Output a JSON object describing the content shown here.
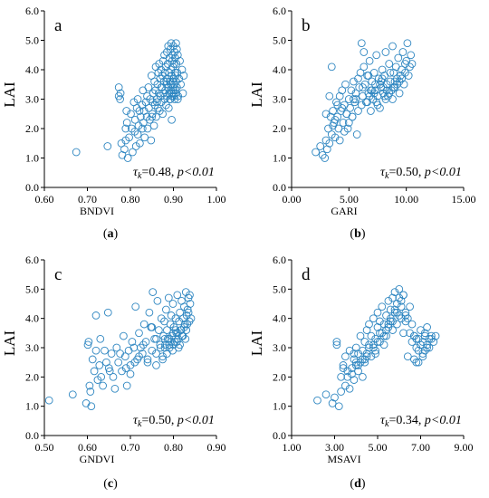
{
  "chart_data": [
    {
      "type": "scatter",
      "panel_label": "a",
      "caption_label": "a",
      "xlabel": "BNDVI",
      "ylabel": "LAI",
      "xlim": [
        0.6,
        1.0
      ],
      "ylim": [
        0.0,
        6.0
      ],
      "x_ticks": [
        "0.60",
        "0.70",
        "0.80",
        "0.90",
        "1.00"
      ],
      "y_ticks": [
        "0.0",
        "1.0",
        "2.0",
        "3.0",
        "4.0",
        "5.0",
        "6.0"
      ],
      "annotation": {
        "symbol": "τ",
        "subscript": "k",
        "value": "=0.48, ",
        "p": "p<0.01"
      },
      "x": [
        0.674,
        0.747,
        0.773,
        0.777,
        0.779,
        0.781,
        0.786,
        0.789,
        0.789,
        0.791,
        0.792,
        0.794,
        0.797,
        0.801,
        0.803,
        0.805,
        0.808,
        0.81,
        0.811,
        0.813,
        0.815,
        0.817,
        0.817,
        0.819,
        0.821,
        0.822,
        0.824,
        0.827,
        0.828,
        0.829,
        0.83,
        0.832,
        0.833,
        0.836,
        0.838,
        0.839,
        0.84,
        0.842,
        0.843,
        0.845,
        0.846,
        0.848,
        0.849,
        0.851,
        0.852,
        0.853,
        0.855,
        0.856,
        0.857,
        0.858,
        0.859,
        0.86,
        0.862,
        0.863,
        0.864,
        0.865,
        0.866,
        0.867,
        0.868,
        0.869,
        0.87,
        0.871,
        0.872,
        0.873,
        0.874,
        0.875,
        0.876,
        0.877,
        0.878,
        0.879,
        0.88,
        0.88,
        0.881,
        0.882,
        0.883,
        0.884,
        0.885,
        0.885,
        0.886,
        0.887,
        0.888,
        0.888,
        0.889,
        0.89,
        0.89,
        0.891,
        0.892,
        0.892,
        0.893,
        0.894,
        0.894,
        0.895,
        0.895,
        0.896,
        0.896,
        0.897,
        0.897,
        0.898,
        0.898,
        0.899,
        0.899,
        0.9,
        0.9,
        0.901,
        0.901,
        0.902,
        0.902,
        0.903,
        0.903,
        0.904,
        0.904,
        0.905,
        0.905,
        0.906,
        0.906,
        0.907,
        0.908,
        0.909,
        0.91,
        0.911,
        0.913,
        0.915,
        0.917,
        0.92,
        0.922,
        0.924,
        0.773,
        0.776,
        0.85,
        0.862,
        0.905,
        0.91,
        0.908,
        0.896,
        0.884,
        0.872,
        0.901,
        0.893
      ],
      "y": [
        1.2,
        1.4,
        3.1,
        3.2,
        1.5,
        1.1,
        1.3,
        2.0,
        1.6,
        2.6,
        2.2,
        1.0,
        1.7,
        2.5,
        2.0,
        1.2,
        2.9,
        1.9,
        2.3,
        1.4,
        2.7,
        3.0,
        1.8,
        2.1,
        2.6,
        1.5,
        2.4,
        2.8,
        2.0,
        3.3,
        2.2,
        2.6,
        1.7,
        2.9,
        2.4,
        3.1,
        2.0,
        3.4,
        2.7,
        2.3,
        3.0,
        1.6,
        3.8,
        2.5,
        2.9,
        3.2,
        2.1,
        3.6,
        2.8,
        3.3,
        4.1,
        2.4,
        3.0,
        3.5,
        2.7,
        3.9,
        3.2,
        4.2,
        2.6,
        3.7,
        3.1,
        4.0,
        2.9,
        3.4,
        3.8,
        2.5,
        4.3,
        3.2,
        3.6,
        4.5,
        3.0,
        3.9,
        3.3,
        4.1,
        2.8,
        3.5,
        4.6,
        3.1,
        3.7,
        4.2,
        3.4,
        4.8,
        2.7,
        3.9,
        3.2,
        4.4,
        3.6,
        3.0,
        4.7,
        3.3,
        4.0,
        3.5,
        4.9,
        3.2,
        3.8,
        4.3,
        3.1,
        3.6,
        4.5,
        3.4,
        4.1,
        3.3,
        4.8,
        3.7,
        3.2,
        4.2,
        3.5,
        4.6,
        3.0,
        3.9,
        4.4,
        3.3,
        3.8,
        4.9,
        3.6,
        4.2,
        3.4,
        3.9,
        4.5,
        3.1,
        3.7,
        4.3,
        3.5,
        4.0,
        3.2,
        3.8,
        3.4,
        3.0,
        2.4,
        2.9,
        3.2,
        3.0,
        4.7,
        2.3,
        3.6,
        3.4,
        3.1,
        3.0
      ]
    },
    {
      "type": "scatter",
      "panel_label": "b",
      "caption_label": "b",
      "xlabel": "GARI",
      "ylabel": "LAI",
      "xlim": [
        0.0,
        15.0
      ],
      "ylim": [
        0.0,
        6.0
      ],
      "x_ticks": [
        "0.00",
        "5.00",
        "10.00",
        "15.00"
      ],
      "y_ticks": [
        "0.0",
        "1.0",
        "2.0",
        "3.0",
        "4.0",
        "5.0",
        "6.0"
      ],
      "annotation": {
        "symbol": "τ",
        "subscript": "k",
        "value": "=0.50, ",
        "p": "p<0.01"
      },
      "x": [
        2.1,
        2.5,
        2.7,
        2.9,
        3.0,
        3.1,
        3.2,
        3.3,
        3.4,
        3.5,
        3.6,
        3.7,
        3.8,
        3.9,
        4.0,
        4.1,
        4.2,
        4.3,
        4.4,
        4.5,
        4.6,
        4.7,
        4.8,
        4.9,
        5.0,
        5.1,
        5.2,
        5.3,
        5.4,
        5.5,
        5.6,
        5.7,
        5.8,
        5.9,
        6.0,
        6.1,
        6.2,
        6.3,
        6.4,
        6.5,
        6.6,
        6.7,
        6.8,
        6.9,
        7.0,
        7.1,
        7.2,
        7.3,
        7.4,
        7.5,
        7.6,
        7.7,
        7.8,
        7.9,
        8.0,
        8.1,
        8.2,
        8.3,
        8.4,
        8.5,
        8.6,
        8.7,
        8.8,
        8.9,
        9.0,
        9.1,
        9.2,
        9.3,
        9.4,
        9.5,
        9.6,
        9.7,
        9.8,
        9.9,
        10.0,
        10.1,
        10.2,
        10.3,
        10.4,
        10.5,
        3.3,
        3.5,
        6.1,
        6.3,
        7.0,
        7.8,
        8.5,
        9.2,
        3.8,
        4.4,
        5.0,
        5.6,
        6.8,
        7.5,
        8.0,
        8.8,
        9.6,
        4.6,
        5.3,
        6.6,
        7.2,
        7.7,
        8.2,
        8.7,
        9.0,
        9.9,
        4.2,
        5.8,
        6.9,
        7.4,
        8.1,
        8.9,
        3.0,
        3.6,
        4.0,
        4.8,
        5.4,
        6.2,
        6.7,
        7.3,
        7.9,
        8.3,
        8.6,
        9.4
      ],
      "y": [
        1.2,
        1.4,
        1.1,
        1.0,
        1.6,
        1.3,
        2.0,
        1.5,
        2.4,
        1.8,
        2.6,
        2.2,
        1.7,
        2.9,
        2.4,
        2.0,
        3.1,
        2.6,
        3.3,
        2.2,
        2.8,
        3.5,
        2.5,
        2.0,
        3.0,
        2.7,
        3.3,
        2.4,
        3.6,
        2.9,
        3.2,
        1.8,
        2.6,
        3.4,
        3.9,
        2.8,
        3.1,
        4.1,
        3.5,
        2.9,
        3.8,
        3.2,
        4.3,
        2.6,
        3.6,
        3.0,
        3.9,
        3.3,
        4.5,
        3.1,
        3.7,
        2.7,
        3.4,
        4.0,
        3.2,
        3.8,
        4.6,
        3.5,
        3.1,
        4.2,
        3.6,
        3.3,
        4.8,
        3.9,
        3.4,
        4.1,
        3.7,
        4.4,
        3.2,
        3.8,
        4.0,
        4.6,
        3.5,
        3.9,
        4.3,
        4.9,
        3.8,
        4.1,
        4.5,
        4.2,
        3.1,
        4.1,
        4.9,
        4.6,
        3.3,
        3.6,
        3.2,
        3.5,
        2.3,
        2.7,
        2.2,
        3.0,
        3.1,
        2.8,
        3.4,
        3.0,
        3.7,
        1.9,
        2.4,
        2.9,
        3.2,
        3.5,
        3.0,
        3.3,
        3.6,
        4.2,
        1.6,
        3.7,
        3.3,
        2.9,
        3.1,
        3.4,
        2.5,
        2.1,
        2.8,
        2.5,
        3.0,
        3.4,
        3.8,
        3.5,
        3.7,
        3.3,
        3.9,
        3.6
      ]
    },
    {
      "type": "scatter",
      "panel_label": "c",
      "caption_label": "c",
      "xlabel": "GNDVI",
      "ylabel": "LAI",
      "xlim": [
        0.5,
        0.9
      ],
      "ylim": [
        0.0,
        6.0
      ],
      "x_ticks": [
        "0.50",
        "0.60",
        "0.70",
        "0.80",
        "0.90"
      ],
      "y_ticks": [
        "0.0",
        "1.0",
        "2.0",
        "3.0",
        "4.0",
        "5.0",
        "6.0"
      ],
      "annotation": {
        "symbol": "τ",
        "subscript": "k",
        "value": "=0.50, ",
        "p": "p<0.01"
      },
      "x": [
        0.511,
        0.566,
        0.597,
        0.601,
        0.603,
        0.605,
        0.607,
        0.609,
        0.612,
        0.616,
        0.62,
        0.624,
        0.628,
        0.632,
        0.636,
        0.64,
        0.644,
        0.648,
        0.652,
        0.656,
        0.66,
        0.664,
        0.668,
        0.672,
        0.676,
        0.68,
        0.684,
        0.688,
        0.692,
        0.696,
        0.7,
        0.704,
        0.708,
        0.712,
        0.716,
        0.72,
        0.724,
        0.728,
        0.732,
        0.736,
        0.74,
        0.744,
        0.748,
        0.752,
        0.756,
        0.76,
        0.763,
        0.766,
        0.769,
        0.772,
        0.775,
        0.777,
        0.779,
        0.781,
        0.783,
        0.785,
        0.787,
        0.789,
        0.791,
        0.793,
        0.795,
        0.797,
        0.799,
        0.801,
        0.803,
        0.805,
        0.807,
        0.809,
        0.811,
        0.813,
        0.815,
        0.817,
        0.819,
        0.821,
        0.823,
        0.825,
        0.827,
        0.829,
        0.831,
        0.833,
        0.835,
        0.837,
        0.839,
        0.841,
        0.62,
        0.63,
        0.65,
        0.7,
        0.72,
        0.75,
        0.76,
        0.78,
        0.79,
        0.8,
        0.81,
        0.82,
        0.83,
        0.74,
        0.77,
        0.785,
        0.795,
        0.805,
        0.815,
        0.825,
        0.835,
        0.76,
        0.775,
        0.79,
        0.8,
        0.812,
        0.822,
        0.832,
        0.69,
        0.71,
        0.73,
        0.75,
        0.78,
        0.798,
        0.808,
        0.818,
        0.828,
        0.838
      ],
      "y": [
        1.2,
        1.4,
        1.1,
        3.1,
        3.2,
        1.7,
        1.5,
        1.0,
        2.6,
        2.2,
        4.1,
        1.9,
        2.4,
        2.0,
        1.7,
        2.9,
        2.5,
        4.2,
        2.2,
        2.8,
        2.0,
        1.6,
        3.0,
        2.5,
        2.8,
        2.2,
        3.4,
        2.7,
        1.7,
        2.9,
        2.4,
        3.2,
        3.0,
        4.4,
        2.6,
        3.5,
        3.0,
        2.8,
        3.8,
        3.2,
        2.5,
        4.2,
        3.7,
        4.9,
        3.3,
        2.8,
        4.6,
        3.6,
        3.1,
        4.0,
        2.6,
        3.4,
        3.9,
        3.1,
        4.3,
        3.6,
        3.3,
        4.7,
        3.0,
        3.8,
        4.1,
        3.4,
        4.5,
        3.7,
        3.2,
        4.0,
        3.5,
        4.8,
        3.3,
        3.9,
        4.2,
        3.6,
        4.6,
        3.4,
        4.0,
        4.4,
        3.8,
        4.9,
        4.1,
        4.3,
        4.7,
        3.9,
        4.5,
        4.0,
        2.9,
        3.3,
        2.3,
        2.1,
        2.7,
        2.9,
        3.3,
        3.0,
        3.3,
        3.1,
        3.5,
        3.4,
        3.6,
        2.6,
        3.0,
        2.8,
        3.2,
        3.6,
        3.1,
        3.7,
        4.2,
        2.4,
        2.7,
        3.1,
        3.5,
        3.0,
        3.4,
        3.8,
        2.3,
        2.5,
        3.1,
        3.7,
        3.3,
        2.9,
        3.2,
        3.6,
        3.3,
        4.8
      ]
    },
    {
      "type": "scatter",
      "panel_label": "d",
      "caption_label": "d",
      "xlabel": "MSAVI",
      "ylabel": "LAI",
      "xlim": [
        1.0,
        9.0
      ],
      "ylim": [
        0.0,
        6.0
      ],
      "x_ticks": [
        "1.00",
        "3.00",
        "5.00",
        "7.00",
        "9.00"
      ],
      "y_ticks": [
        "0.0",
        "1.0",
        "2.0",
        "3.0",
        "4.0",
        "5.0",
        "6.0"
      ],
      "annotation": {
        "symbol": "τ",
        "subscript": "k",
        "value": "=0.34, ",
        "p": "p<0.01"
      },
      "x": [
        2.2,
        2.6,
        2.9,
        3.0,
        3.1,
        3.1,
        3.2,
        3.3,
        3.3,
        3.4,
        3.5,
        3.5,
        3.6,
        3.7,
        3.7,
        3.8,
        3.9,
        3.9,
        4.0,
        4.0,
        4.1,
        4.1,
        4.2,
        4.2,
        4.3,
        4.3,
        4.4,
        4.4,
        4.5,
        4.5,
        4.6,
        4.6,
        4.7,
        4.7,
        4.8,
        4.8,
        4.9,
        4.9,
        5.0,
        5.0,
        5.1,
        5.1,
        5.2,
        5.2,
        5.3,
        5.3,
        5.4,
        5.4,
        5.5,
        5.5,
        5.6,
        5.6,
        5.7,
        5.7,
        5.8,
        5.8,
        5.9,
        5.9,
        6.0,
        6.0,
        6.1,
        6.1,
        6.2,
        6.2,
        6.3,
        6.3,
        6.4,
        6.5,
        6.6,
        6.6,
        6.7,
        6.7,
        6.8,
        6.8,
        6.9,
        6.9,
        7.0,
        7.0,
        7.1,
        7.1,
        7.2,
        7.2,
        7.3,
        7.3,
        7.4,
        7.4,
        7.5,
        7.6,
        7.7,
        3.8,
        4.1,
        4.3,
        4.6,
        4.9,
        5.1,
        5.4,
        5.6,
        5.8,
        6.0,
        6.3,
        6.5,
        6.8,
        7.0,
        7.2,
        3.6,
        4.0,
        4.5,
        5.0,
        5.5,
        5.9,
        6.1,
        6.4,
        6.9,
        7.3,
        3.4,
        3.9,
        4.4,
        4.8,
        5.3,
        5.7,
        6.2,
        6.7,
        7.1,
        7.5
      ],
      "y": [
        1.2,
        1.4,
        1.1,
        1.3,
        3.2,
        3.1,
        1.0,
        2.0,
        1.5,
        2.4,
        1.7,
        2.7,
        2.2,
        1.6,
        2.9,
        2.1,
        2.6,
        1.9,
        2.4,
        3.0,
        2.2,
        2.8,
        3.4,
        2.5,
        2.9,
        2.0,
        3.2,
        2.6,
        3.6,
        2.8,
        3.1,
        3.8,
        2.7,
        3.4,
        3.0,
        4.0,
        3.3,
        2.9,
        3.7,
        4.2,
        3.2,
        3.9,
        3.5,
        4.4,
        3.1,
        3.8,
        4.1,
        3.4,
        4.6,
        3.7,
        4.3,
        3.9,
        4.7,
        3.6,
        4.2,
        4.9,
        3.8,
        4.5,
        4.1,
        5.0,
        4.0,
        4.4,
        3.5,
        4.8,
        3.9,
        4.2,
        2.7,
        3.5,
        3.8,
        3.2,
        2.6,
        3.4,
        2.5,
        3.0,
        3.3,
        2.5,
        3.6,
        3.1,
        2.8,
        3.2,
        3.4,
        2.9,
        3.7,
        3.1,
        3.3,
        3.0,
        3.4,
        3.2,
        3.4,
        2.3,
        2.4,
        2.6,
        3.0,
        2.8,
        3.5,
        3.6,
        4.0,
        4.3,
        4.7,
        4.1,
        4.4,
        3.3,
        3.1,
        3.5,
        2.0,
        2.5,
        2.7,
        3.2,
        3.8,
        4.2,
        4.6,
        4.0,
        2.9,
        3.0,
        2.3,
        2.8,
        2.5,
        3.1,
        3.4,
        3.9,
        4.8,
        3.4,
        2.7,
        3.3
      ]
    }
  ]
}
